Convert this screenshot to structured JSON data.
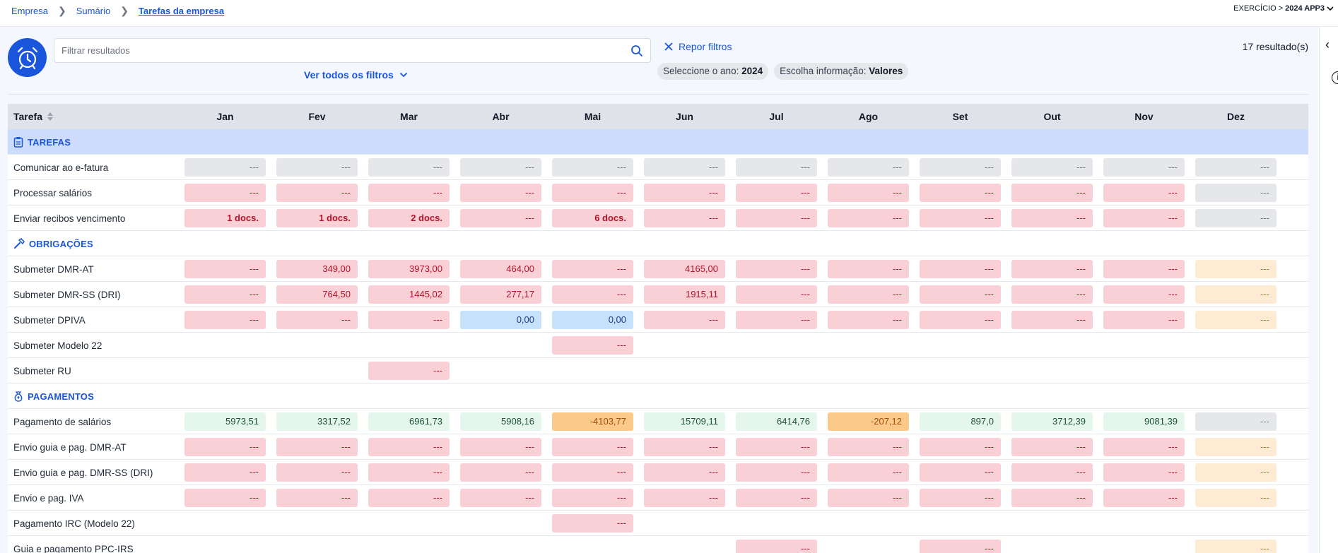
{
  "breadcrumb": [
    "Empresa",
    "Sumário",
    "Tarefas da empresa"
  ],
  "exercise": {
    "label": "EXERCÍCIO > ",
    "value": "2024 APP3"
  },
  "search": {
    "placeholder": "Filtrar resultados"
  },
  "filters": {
    "all_label": "Ver todos os filtros",
    "reset_label": "Repor filtros",
    "year_label": "Seleccione o ano:",
    "year_value": "2024",
    "info_label": "Escolha informação:",
    "info_value": "Valores"
  },
  "results": "17 resultado(s)",
  "table": {
    "task_header": "Tarefa",
    "months": [
      "Jan",
      "Fev",
      "Mar",
      "Abr",
      "Mai",
      "Jun",
      "Jul",
      "Ago",
      "Set",
      "Out",
      "Nov",
      "Dez"
    ]
  },
  "sections": [
    {
      "title": "TAREFAS",
      "icon": "clipboard-icon",
      "highlight": true,
      "rows": [
        {
          "label": "Comunicar ao e-fatura",
          "cells": [
            [
              "---",
              "gray"
            ],
            [
              "---",
              "gray"
            ],
            [
              "---",
              "gray"
            ],
            [
              "---",
              "gray"
            ],
            [
              "---",
              "gray"
            ],
            [
              "---",
              "gray"
            ],
            [
              "---",
              "gray"
            ],
            [
              "---",
              "gray"
            ],
            [
              "---",
              "gray"
            ],
            [
              "---",
              "gray"
            ],
            [
              "---",
              "gray"
            ],
            [
              "---",
              "gray"
            ]
          ]
        },
        {
          "label": "Processar salários",
          "cells": [
            [
              "---",
              "red"
            ],
            [
              "---",
              "red"
            ],
            [
              "---",
              "red"
            ],
            [
              "---",
              "red"
            ],
            [
              "---",
              "red"
            ],
            [
              "---",
              "red"
            ],
            [
              "---",
              "red"
            ],
            [
              "---",
              "red"
            ],
            [
              "---",
              "red"
            ],
            [
              "---",
              "red"
            ],
            [
              "---",
              "red"
            ],
            [
              "---",
              "gray"
            ]
          ]
        },
        {
          "label": "Enviar recibos vencimento",
          "cells": [
            [
              "1 docs.",
              "redb"
            ],
            [
              "1 docs.",
              "redb"
            ],
            [
              "2 docs.",
              "redb"
            ],
            [
              "---",
              "red"
            ],
            [
              "6 docs.",
              "redb"
            ],
            [
              "---",
              "red"
            ],
            [
              "---",
              "red"
            ],
            [
              "---",
              "red"
            ],
            [
              "---",
              "red"
            ],
            [
              "---",
              "red"
            ],
            [
              "---",
              "red"
            ],
            [
              "---",
              "gray"
            ]
          ]
        }
      ]
    },
    {
      "title": "OBRIGAÇÕES",
      "icon": "hammer-icon",
      "highlight": false,
      "rows": [
        {
          "label": "Submeter DMR-AT",
          "cells": [
            [
              "---",
              "red"
            ],
            [
              "349,00",
              "red"
            ],
            [
              "3973,00",
              "red"
            ],
            [
              "464,00",
              "red"
            ],
            [
              "---",
              "red"
            ],
            [
              "4165,00",
              "red"
            ],
            [
              "---",
              "red"
            ],
            [
              "---",
              "red"
            ],
            [
              "---",
              "red"
            ],
            [
              "---",
              "red"
            ],
            [
              "---",
              "red"
            ],
            [
              "---",
              "peach"
            ]
          ]
        },
        {
          "label": "Submeter DMR-SS (DRI)",
          "cells": [
            [
              "---",
              "red"
            ],
            [
              "764,50",
              "red"
            ],
            [
              "1445,02",
              "red"
            ],
            [
              "277,17",
              "red"
            ],
            [
              "---",
              "red"
            ],
            [
              "1915,11",
              "red"
            ],
            [
              "---",
              "red"
            ],
            [
              "---",
              "red"
            ],
            [
              "---",
              "red"
            ],
            [
              "---",
              "red"
            ],
            [
              "---",
              "red"
            ],
            [
              "---",
              "peach"
            ]
          ]
        },
        {
          "label": "Submeter DPIVA",
          "cells": [
            [
              "---",
              "red"
            ],
            [
              "---",
              "red"
            ],
            [
              "---",
              "red"
            ],
            [
              "0,00",
              "blue"
            ],
            [
              "0,00",
              "blue"
            ],
            [
              "---",
              "red"
            ],
            [
              "---",
              "red"
            ],
            [
              "---",
              "red"
            ],
            [
              "---",
              "red"
            ],
            [
              "---",
              "red"
            ],
            [
              "---",
              "red"
            ],
            [
              "---",
              "peach"
            ]
          ]
        },
        {
          "label": "Submeter Modelo 22",
          "cells": [
            null,
            null,
            null,
            null,
            [
              "---",
              "red"
            ],
            null,
            null,
            null,
            null,
            null,
            null,
            null
          ]
        },
        {
          "label": "Submeter RU",
          "cells": [
            null,
            null,
            [
              "---",
              "red"
            ],
            null,
            null,
            null,
            null,
            null,
            null,
            null,
            null,
            null
          ]
        }
      ]
    },
    {
      "title": "PAGAMENTOS",
      "icon": "money-bag-icon",
      "highlight": false,
      "rows": [
        {
          "label": "Pagamento de salários",
          "cells": [
            [
              "5973,51",
              "green"
            ],
            [
              "3317,52",
              "green"
            ],
            [
              "6961,73",
              "green"
            ],
            [
              "5908,16",
              "green"
            ],
            [
              "-4103,77",
              "orange"
            ],
            [
              "15709,11",
              "green"
            ],
            [
              "6414,76",
              "green"
            ],
            [
              "-207,12",
              "orange"
            ],
            [
              "897,0",
              "green"
            ],
            [
              "3712,39",
              "green"
            ],
            [
              "9081,39",
              "green"
            ],
            [
              "---",
              "gray"
            ]
          ]
        },
        {
          "label": "Envio guia e pag. DMR-AT",
          "cells": [
            [
              "---",
              "red"
            ],
            [
              "---",
              "red"
            ],
            [
              "---",
              "red"
            ],
            [
              "---",
              "red"
            ],
            [
              "---",
              "red"
            ],
            [
              "---",
              "red"
            ],
            [
              "---",
              "red"
            ],
            [
              "---",
              "red"
            ],
            [
              "---",
              "red"
            ],
            [
              "---",
              "red"
            ],
            [
              "---",
              "red"
            ],
            [
              "---",
              "peach"
            ]
          ]
        },
        {
          "label": "Envio guia e pag. DMR-SS (DRI)",
          "cells": [
            [
              "---",
              "red"
            ],
            [
              "---",
              "red"
            ],
            [
              "---",
              "red"
            ],
            [
              "---",
              "red"
            ],
            [
              "---",
              "red"
            ],
            [
              "---",
              "red"
            ],
            [
              "---",
              "red"
            ],
            [
              "---",
              "red"
            ],
            [
              "---",
              "red"
            ],
            [
              "---",
              "red"
            ],
            [
              "---",
              "red"
            ],
            [
              "---",
              "peach"
            ]
          ]
        },
        {
          "label": "Envio e pag. IVA",
          "cells": [
            [
              "---",
              "red"
            ],
            [
              "---",
              "red"
            ],
            [
              "---",
              "red"
            ],
            [
              "---",
              "red"
            ],
            [
              "---",
              "red"
            ],
            [
              "---",
              "red"
            ],
            [
              "---",
              "red"
            ],
            [
              "---",
              "red"
            ],
            [
              "---",
              "red"
            ],
            [
              "---",
              "red"
            ],
            [
              "---",
              "red"
            ],
            [
              "---",
              "peach"
            ]
          ]
        },
        {
          "label": "Pagamento IRC (Modelo 22)",
          "cells": [
            null,
            null,
            null,
            null,
            [
              "---",
              "red"
            ],
            null,
            null,
            null,
            null,
            null,
            null,
            null
          ]
        },
        {
          "label": "Guia e pagamento PPC-IRS",
          "cells": [
            null,
            null,
            null,
            null,
            null,
            null,
            [
              "---",
              "red"
            ],
            null,
            [
              "---",
              "red"
            ],
            null,
            null,
            [
              "---",
              "peach"
            ]
          ]
        }
      ]
    }
  ]
}
